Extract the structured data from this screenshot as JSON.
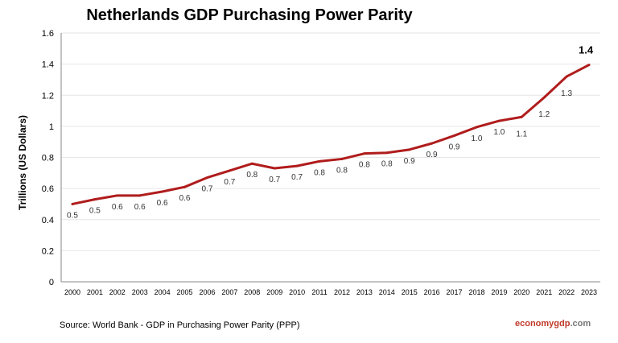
{
  "chart_data": {
    "type": "line",
    "title": "Netherlands GDP Purchasing Power Parity",
    "ylabel": "Trillions (US Dollars)",
    "xlabel": "",
    "ylim": [
      0,
      1.6
    ],
    "yticks": [
      "0",
      "0.2",
      "0.4",
      "0.6",
      "0.8",
      "1",
      "1.2",
      "1.4",
      "1.6"
    ],
    "grid": true,
    "line_color": "#b01c1c",
    "categories": [
      "2000",
      "2001",
      "2002",
      "2003",
      "2004",
      "2005",
      "2006",
      "2007",
      "2008",
      "2009",
      "2010",
      "2011",
      "2012",
      "2013",
      "2014",
      "2015",
      "2016",
      "2017",
      "2018",
      "2019",
      "2020",
      "2021",
      "2022",
      "2023"
    ],
    "values": [
      0.5,
      0.53,
      0.555,
      0.555,
      0.58,
      0.61,
      0.67,
      0.715,
      0.76,
      0.73,
      0.745,
      0.775,
      0.79,
      0.825,
      0.83,
      0.85,
      0.89,
      0.94,
      0.995,
      1.035,
      1.06,
      1.185,
      1.32,
      1.395
    ],
    "data_labels": [
      "0.5",
      "0.5",
      "0.6",
      "0.6",
      "0.6",
      "0.6",
      "0.7",
      "0.7",
      "0.8",
      "0.7",
      "0.7",
      "0.8",
      "0.8",
      "0.8",
      "0.8",
      "0.9",
      "0.9",
      "0.9",
      "1.0",
      "1.0",
      "1.1",
      "1.2",
      "1.3",
      "1.4"
    ]
  },
  "source": "Source:  World Bank -  GDP  in Purchasing Power Parity (PPP)",
  "brand": {
    "main": "economygdp",
    "suffix": ".com"
  }
}
